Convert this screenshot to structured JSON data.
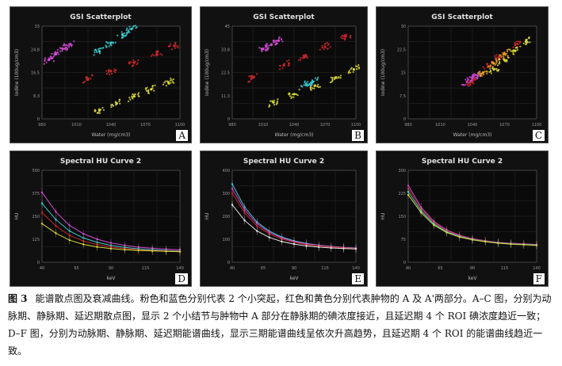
{
  "panels": [
    {
      "id": "A",
      "title": "GSI Scatterplot",
      "kind": "scatter",
      "ylabel": "Iodine (100ug/cm3)",
      "xlabel": "Water (mg/cm3)"
    },
    {
      "id": "B",
      "title": "GSI Scatterplot",
      "kind": "scatter",
      "ylabel": "Iodine (100ug/cm3)",
      "xlabel": "Water (mg/cm3)"
    },
    {
      "id": "C",
      "title": "GSI Scatterplot",
      "kind": "scatter",
      "ylabel": "Iodine (100ug/cm3)",
      "xlabel": "Water (mg/cm3)"
    },
    {
      "id": "D",
      "title": "Spectral HU Curve 2",
      "kind": "curve",
      "ylabel": "HU",
      "xlabel": "keV"
    },
    {
      "id": "E",
      "title": "Spectral HU Curve 2",
      "kind": "curve",
      "ylabel": "HU",
      "xlabel": "keV"
    },
    {
      "id": "F",
      "title": "Spectral HU Curve 2",
      "kind": "curve",
      "ylabel": "HU",
      "xlabel": "keV"
    }
  ],
  "colors": {
    "pink": "#d24bd6",
    "cyan": "#3ad0d0",
    "red": "#c8282a",
    "yellow": "#d8d83a",
    "white": "#e8e8e8",
    "orange": "#e8a020"
  },
  "chart_data": [
    {
      "type": "scatter",
      "title": "GSI Scatterplot",
      "xlabel": "Water (mg/cm3)",
      "ylabel": "Iodine (100ug/cm3)",
      "xlim": [
        980,
        1100
      ],
      "ylim": [
        0,
        33
      ],
      "series": [
        {
          "color": "pink",
          "x": [
            986,
            992,
            998,
            1004
          ],
          "y": [
            21,
            23,
            25,
            26.5
          ]
        },
        {
          "color": "cyan",
          "x": [
            1030,
            1040,
            1050,
            1058
          ],
          "y": [
            24,
            27,
            30,
            32
          ]
        },
        {
          "color": "red",
          "x": [
            1020,
            1040,
            1060,
            1080,
            1095
          ],
          "y": [
            14,
            17,
            20,
            23,
            26
          ]
        },
        {
          "color": "yellow",
          "x": [
            1030,
            1045,
            1060,
            1075,
            1090
          ],
          "y": [
            3,
            5.5,
            8,
            10.5,
            13
          ]
        }
      ]
    },
    {
      "type": "scatter",
      "title": "GSI Scatterplot",
      "xlabel": "Water (mg/cm3)",
      "ylabel": "Iodine (100ug/cm3)",
      "xlim": [
        980,
        1100
      ],
      "ylim": [
        0,
        45
      ],
      "series": [
        {
          "color": "pink",
          "x": [
            1010,
            1018,
            1025
          ],
          "y": [
            34,
            36,
            38
          ]
        },
        {
          "color": "red",
          "x": [
            1000,
            1030,
            1050,
            1070,
            1090
          ],
          "y": [
            20,
            26,
            30,
            35,
            40
          ]
        },
        {
          "color": "yellow",
          "x": [
            1020,
            1040,
            1060,
            1080,
            1098
          ],
          "y": [
            8,
            12,
            16,
            20,
            24
          ]
        },
        {
          "color": "cyan",
          "x": [
            1052,
            1058
          ],
          "y": [
            17,
            18
          ]
        }
      ]
    },
    {
      "type": "scatter",
      "title": "GSI Scatterplot",
      "xlabel": "Water (mg/cm3)",
      "ylabel": "Iodine (100ug/cm3)",
      "xlim": [
        980,
        1100
      ],
      "ylim": [
        0,
        30
      ],
      "series": [
        {
          "color": "pink",
          "x": [
            1035,
            1040,
            1045
          ],
          "y": [
            12,
            13,
            14
          ]
        },
        {
          "color": "red",
          "x": [
            1040,
            1055,
            1065,
            1080
          ],
          "y": [
            12,
            17,
            20,
            24
          ]
        },
        {
          "color": "orange",
          "x": [
            1050,
            1060,
            1070
          ],
          "y": [
            15,
            18,
            21
          ]
        },
        {
          "color": "yellow",
          "x": [
            1060,
            1070,
            1080,
            1090
          ],
          "y": [
            16,
            19,
            22,
            25
          ]
        }
      ]
    },
    {
      "type": "line",
      "title": "Spectral HU Curve 2",
      "xlabel": "keV",
      "ylabel": "HU",
      "x": [
        40,
        50,
        60,
        70,
        80,
        90,
        100,
        110,
        120,
        130,
        140
      ],
      "ylim": [
        0,
        500
      ],
      "series": [
        {
          "color": "pink",
          "values": [
            380,
            275,
            200,
            155,
            125,
            105,
            92,
            82,
            76,
            71,
            68
          ]
        },
        {
          "color": "cyan",
          "values": [
            320,
            232,
            170,
            132,
            108,
            92,
            81,
            73,
            68,
            64,
            61
          ]
        },
        {
          "color": "red",
          "values": [
            270,
            198,
            146,
            115,
            96,
            83,
            74,
            68,
            64,
            61,
            59
          ]
        },
        {
          "color": "yellow",
          "values": [
            210,
            158,
            120,
            97,
            83,
            74,
            68,
            64,
            61,
            59,
            57
          ]
        }
      ]
    },
    {
      "type": "line",
      "title": "Spectral HU Curve 2",
      "xlabel": "keV",
      "ylabel": "HU",
      "x": [
        40,
        50,
        60,
        70,
        80,
        90,
        100,
        110,
        120,
        130,
        140
      ],
      "ylim": [
        0,
        400
      ],
      "series": [
        {
          "color": "cyan",
          "values": [
            340,
            240,
            175,
            135,
            110,
            93,
            82,
            74,
            69,
            65,
            62
          ]
        },
        {
          "color": "pink",
          "values": [
            320,
            228,
            168,
            130,
            106,
            90,
            80,
            73,
            68,
            64,
            61
          ]
        },
        {
          "color": "red",
          "values": [
            300,
            215,
            158,
            123,
            101,
            87,
            77,
            71,
            66,
            63,
            60
          ]
        },
        {
          "color": "white",
          "values": [
            250,
            182,
            136,
            108,
            90,
            79,
            71,
            66,
            62,
            60,
            58
          ]
        }
      ]
    },
    {
      "type": "line",
      "title": "Spectral HU Curve 2",
      "xlabel": "keV",
      "ylabel": "HU",
      "x": [
        40,
        50,
        60,
        70,
        80,
        90,
        100,
        110,
        120,
        130,
        140
      ],
      "ylim": [
        0,
        300
      ],
      "series": [
        {
          "color": "pink",
          "values": [
            250,
            180,
            133,
            105,
            88,
            77,
            70,
            65,
            62,
            60,
            58
          ]
        },
        {
          "color": "red",
          "values": [
            240,
            174,
            129,
            102,
            86,
            75,
            69,
            64,
            61,
            59,
            57
          ]
        },
        {
          "color": "cyan",
          "values": [
            230,
            168,
            125,
            99,
            84,
            74,
            68,
            63,
            60,
            58,
            56
          ]
        },
        {
          "color": "yellow",
          "values": [
            220,
            162,
            121,
            97,
            82,
            73,
            67,
            62,
            59,
            57,
            55
          ]
        }
      ]
    }
  ],
  "caption": {
    "label": "图 3",
    "text": "能谱散点图及衰减曲线。粉色和蓝色分别代表 2 个小突起，红色和黄色分别代表肿物的 A 及 A'两部分。A–C 图，分别为动脉期、静脉期、延迟期散点图，显示 2 个小结节与肿物中 A 部分在静脉期的碘浓度接近，且延迟期 4 个 ROI 碘浓度趋近一致；D–F 图，分别为动脉期、静脉期、延迟期能谱曲线，显示三期能谱曲线呈依次升高趋势，且延迟期 4 个 ROI 的能谱曲线趋近一致。"
  }
}
